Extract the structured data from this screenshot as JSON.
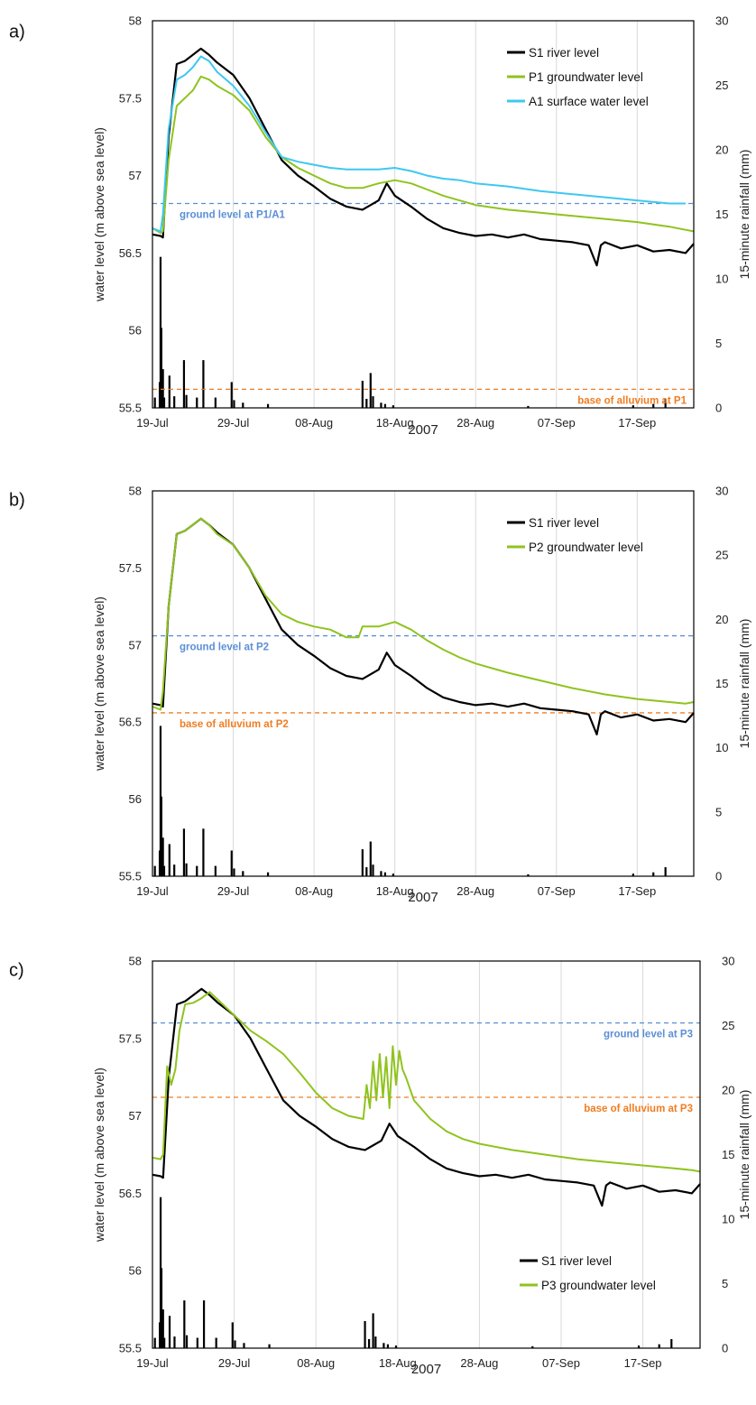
{
  "chart_data": [
    {
      "type": "line",
      "panel_label": "a)",
      "x_ticks": [
        "19-Jul",
        "29-Jul",
        "08-Aug",
        "18-Aug",
        "28-Aug",
        "07-Sep",
        "17-Sep"
      ],
      "x_tick_days": [
        0,
        10,
        20,
        30,
        40,
        50,
        60
      ],
      "xlim_days_from_19_Jul": [
        0,
        67
      ],
      "xlabel": "2007",
      "ylabel": "water level (m above sea level)",
      "ylim": [
        55.5,
        58
      ],
      "y_ticks": [
        "55.5",
        "56",
        "56.5",
        "57",
        "57.5",
        "58"
      ],
      "y2label": "15-minute rainfall (mm)",
      "y2lim": [
        0,
        30
      ],
      "y2_ticks": [
        "0",
        "5",
        "10",
        "15",
        "20",
        "25",
        "30"
      ],
      "grid": "vertical",
      "legend_position": "top-right",
      "series": [
        {
          "name": "S1 river level",
          "color": "#000000",
          "x": [
            0,
            1,
            1.3,
            2,
            3,
            4,
            5,
            6,
            7,
            8,
            10,
            12,
            14,
            16,
            18,
            20,
            22,
            24,
            26,
            28,
            29,
            30,
            32,
            34,
            36,
            38,
            40,
            42,
            44,
            46,
            48,
            50,
            52,
            54,
            55,
            55.5,
            56,
            58,
            60,
            62,
            64,
            66,
            67
          ],
          "y": [
            56.62,
            56.61,
            56.6,
            57.25,
            57.72,
            57.74,
            57.78,
            57.82,
            57.78,
            57.73,
            57.65,
            57.5,
            57.3,
            57.1,
            57.0,
            56.93,
            56.85,
            56.8,
            56.78,
            56.84,
            56.95,
            56.87,
            56.8,
            56.72,
            56.66,
            56.63,
            56.61,
            56.62,
            56.6,
            56.62,
            56.59,
            56.58,
            56.57,
            56.55,
            56.42,
            56.55,
            56.57,
            56.53,
            56.55,
            56.51,
            56.52,
            56.5,
            56.56
          ]
        },
        {
          "name": "P1 groundwater level",
          "color": "#8fc31f",
          "x": [
            0,
            1,
            1.3,
            2,
            3,
            4,
            5,
            6,
            7,
            8,
            10,
            12,
            14,
            16,
            18,
            20,
            22,
            24,
            26,
            28,
            30,
            32,
            34,
            36,
            38,
            40,
            44,
            48,
            52,
            56,
            60,
            64,
            66,
            67
          ],
          "y": [
            56.66,
            56.63,
            56.64,
            57.1,
            57.45,
            57.5,
            57.55,
            57.64,
            57.62,
            57.58,
            57.52,
            57.42,
            57.25,
            57.12,
            57.05,
            57.0,
            56.95,
            56.92,
            56.92,
            56.95,
            56.97,
            56.95,
            56.91,
            56.87,
            56.84,
            56.81,
            56.78,
            56.76,
            56.74,
            56.72,
            56.7,
            56.67,
            56.65,
            56.64
          ]
        },
        {
          "name": "A1 surface water level",
          "color": "#3ec8f0",
          "x": [
            0,
            1,
            1.3,
            2,
            3,
            4,
            5,
            6,
            7,
            8,
            10,
            12,
            14,
            16,
            18,
            20,
            22,
            24,
            26,
            28,
            30,
            32,
            34,
            36,
            38,
            40,
            44,
            48,
            52,
            56,
            60,
            64,
            66
          ],
          "y": [
            56.66,
            56.64,
            56.75,
            57.3,
            57.62,
            57.65,
            57.7,
            57.77,
            57.74,
            57.67,
            57.58,
            57.45,
            57.28,
            57.12,
            57.09,
            57.07,
            57.05,
            57.04,
            57.04,
            57.04,
            57.05,
            57.03,
            57.0,
            56.98,
            56.97,
            56.95,
            56.93,
            56.9,
            56.88,
            56.86,
            56.84,
            56.82,
            56.82
          ]
        }
      ],
      "rainfall_series": {
        "color": "#000000",
        "x": [
          0.3,
          0.9,
          1.0,
          1.1,
          1.3,
          1.45,
          2.1,
          2.7,
          3.9,
          4.2,
          5.5,
          6.3,
          7.8,
          9.8,
          10.1,
          11.2,
          14.3,
          26.0,
          26.5,
          27.0,
          27.3,
          28.3,
          28.8,
          29.8,
          46.5,
          59.5,
          62.0,
          63.5
        ],
        "values": [
          0.8,
          2.0,
          11.7,
          6.2,
          3.0,
          0.8,
          2.5,
          0.9,
          3.7,
          1.0,
          0.8,
          3.7,
          0.8,
          2.0,
          0.6,
          0.4,
          0.3,
          2.1,
          0.7,
          2.7,
          0.9,
          0.4,
          0.3,
          0.2,
          0.15,
          0.2,
          0.3,
          0.7
        ]
      },
      "reference_lines": [
        {
          "label": "ground level at P1/A1",
          "value": 56.82,
          "color": "#5b8fd6",
          "label_side": "left"
        },
        {
          "label": "base of alluvium at P1",
          "value": 55.62,
          "color": "#ef7d22",
          "label_side": "right"
        }
      ]
    },
    {
      "type": "line",
      "panel_label": "b)",
      "x_ticks": [
        "19-Jul",
        "29-Jul",
        "08-Aug",
        "18-Aug",
        "28-Aug",
        "07-Sep",
        "17-Sep"
      ],
      "x_tick_days": [
        0,
        10,
        20,
        30,
        40,
        50,
        60
      ],
      "xlim_days_from_19_Jul": [
        0,
        67
      ],
      "xlabel": "2007",
      "ylabel": "water level (m above sea level)",
      "ylim": [
        55.5,
        58
      ],
      "y_ticks": [
        "55.5",
        "56",
        "56.5",
        "57",
        "57.5",
        "58"
      ],
      "y2label": "15-minute rainfall (mm)",
      "y2lim": [
        0,
        30
      ],
      "y2_ticks": [
        "0",
        "5",
        "10",
        "15",
        "20",
        "25",
        "30"
      ],
      "grid": "vertical",
      "legend_position": "top-right",
      "series": [
        {
          "name": "S1 river level",
          "color": "#000000",
          "x": [
            0,
            1,
            1.3,
            2,
            3,
            4,
            5,
            6,
            7,
            8,
            10,
            12,
            14,
            16,
            18,
            20,
            22,
            24,
            26,
            28,
            29,
            30,
            32,
            34,
            36,
            38,
            40,
            42,
            44,
            46,
            48,
            50,
            52,
            54,
            55,
            55.5,
            56,
            58,
            60,
            62,
            64,
            66,
            67
          ],
          "y": [
            56.62,
            56.61,
            56.6,
            57.25,
            57.72,
            57.74,
            57.78,
            57.82,
            57.78,
            57.73,
            57.65,
            57.5,
            57.3,
            57.1,
            57.0,
            56.93,
            56.85,
            56.8,
            56.78,
            56.84,
            56.95,
            56.87,
            56.8,
            56.72,
            56.66,
            56.63,
            56.61,
            56.62,
            56.6,
            56.62,
            56.59,
            56.58,
            56.57,
            56.55,
            56.42,
            56.55,
            56.57,
            56.53,
            56.55,
            56.51,
            56.52,
            56.5,
            56.56
          ]
        },
        {
          "name": "P2 groundwater level",
          "color": "#8fc31f",
          "x": [
            0,
            1,
            1.3,
            2,
            3,
            4,
            5,
            6,
            7,
            8,
            10,
            12,
            14,
            16,
            18,
            20,
            22,
            24,
            25.5,
            26,
            28,
            30,
            32,
            34,
            36,
            38,
            40,
            44,
            48,
            52,
            56,
            60,
            64,
            66,
            67
          ],
          "y": [
            56.6,
            56.58,
            56.7,
            57.25,
            57.72,
            57.74,
            57.78,
            57.82,
            57.78,
            57.72,
            57.65,
            57.5,
            57.32,
            57.2,
            57.15,
            57.12,
            57.1,
            57.05,
            57.05,
            57.12,
            57.12,
            57.15,
            57.1,
            57.03,
            56.97,
            56.92,
            56.88,
            56.82,
            56.77,
            56.72,
            56.68,
            56.65,
            56.63,
            56.62,
            56.63
          ]
        }
      ],
      "rainfall_series": {
        "color": "#000000",
        "x": [
          0.3,
          0.9,
          1.0,
          1.1,
          1.3,
          1.45,
          2.1,
          2.7,
          3.9,
          4.2,
          5.5,
          6.3,
          7.8,
          9.8,
          10.1,
          11.2,
          14.3,
          26.0,
          26.5,
          27.0,
          27.3,
          28.3,
          28.8,
          29.8,
          46.5,
          59.5,
          62.0,
          63.5
        ],
        "values": [
          0.8,
          2.0,
          11.7,
          6.2,
          3.0,
          0.8,
          2.5,
          0.9,
          3.7,
          1.0,
          0.8,
          3.7,
          0.8,
          2.0,
          0.6,
          0.4,
          0.3,
          2.1,
          0.7,
          2.7,
          0.9,
          0.4,
          0.3,
          0.2,
          0.15,
          0.2,
          0.3,
          0.7
        ]
      },
      "reference_lines": [
        {
          "label": "ground level at P2",
          "value": 57.06,
          "color": "#5b8fd6",
          "label_side": "left"
        },
        {
          "label": "base of alluvium at P2",
          "value": 56.56,
          "color": "#ef7d22",
          "label_side": "left"
        }
      ]
    },
    {
      "type": "line",
      "panel_label": "c)",
      "x_ticks": [
        "19-Jul",
        "29-Jul",
        "08-Aug",
        "18-Aug",
        "28-Aug",
        "07-Sep",
        "17-Sep"
      ],
      "x_tick_days": [
        0,
        10,
        20,
        30,
        40,
        50,
        60
      ],
      "xlim_days_from_19_Jul": [
        0,
        67
      ],
      "xlabel": "2007",
      "ylabel": "water level (m above sea level)",
      "ylim": [
        55.5,
        58
      ],
      "y_ticks": [
        "55.5",
        "56",
        "56.5",
        "57",
        "57.5",
        "58"
      ],
      "y2label": "15-minute rainfall (mm)",
      "y2lim": [
        0,
        30
      ],
      "y2_ticks": [
        "0",
        "5",
        "10",
        "15",
        "20",
        "25",
        "30"
      ],
      "grid": "vertical",
      "legend_position": "bottom-right",
      "series": [
        {
          "name": "S1 river level",
          "color": "#000000",
          "x": [
            0,
            1,
            1.3,
            2,
            3,
            4,
            5,
            6,
            7,
            8,
            10,
            12,
            14,
            16,
            18,
            20,
            22,
            24,
            26,
            28,
            29,
            30,
            32,
            34,
            36,
            38,
            40,
            42,
            44,
            46,
            48,
            50,
            52,
            54,
            55,
            55.5,
            56,
            58,
            60,
            62,
            64,
            66,
            67
          ],
          "y": [
            56.62,
            56.61,
            56.6,
            57.25,
            57.72,
            57.74,
            57.78,
            57.82,
            57.78,
            57.73,
            57.65,
            57.5,
            57.3,
            57.1,
            57.0,
            56.93,
            56.85,
            56.8,
            56.78,
            56.84,
            56.95,
            56.87,
            56.8,
            56.72,
            56.66,
            56.63,
            56.61,
            56.62,
            56.6,
            56.62,
            56.59,
            56.58,
            56.57,
            56.55,
            56.42,
            56.55,
            56.57,
            56.53,
            56.55,
            56.51,
            56.52,
            56.5,
            56.56
          ]
        },
        {
          "name": "P3 groundwater level",
          "color": "#8fc31f",
          "x": [
            0,
            1,
            1.3,
            1.8,
            2.3,
            2.8,
            3.3,
            4,
            5,
            6,
            7,
            8,
            10,
            12,
            14,
            16,
            18,
            20,
            22,
            24,
            25.8,
            26.2,
            26.6,
            27,
            27.4,
            27.8,
            28.2,
            28.6,
            29,
            29.4,
            29.8,
            30.2,
            30.6,
            31,
            32,
            34,
            36,
            38,
            40,
            44,
            48,
            52,
            56,
            60,
            64,
            66,
            67
          ],
          "y": [
            56.73,
            56.72,
            56.75,
            57.32,
            57.2,
            57.3,
            57.55,
            57.72,
            57.73,
            57.76,
            57.8,
            57.75,
            57.65,
            57.55,
            57.48,
            57.4,
            57.28,
            57.15,
            57.05,
            57.0,
            56.98,
            57.2,
            57.05,
            57.35,
            57.1,
            57.4,
            57.12,
            57.38,
            57.05,
            57.45,
            57.2,
            57.42,
            57.3,
            57.25,
            57.1,
            56.98,
            56.9,
            56.85,
            56.82,
            56.78,
            56.75,
            56.72,
            56.7,
            56.68,
            56.66,
            56.65,
            56.64
          ]
        }
      ],
      "rainfall_series": {
        "color": "#000000",
        "x": [
          0.3,
          0.9,
          1.0,
          1.1,
          1.3,
          1.45,
          2.1,
          2.7,
          3.9,
          4.2,
          5.5,
          6.3,
          7.8,
          9.8,
          10.1,
          11.2,
          14.3,
          26.0,
          26.5,
          27.0,
          27.3,
          28.3,
          28.8,
          29.8,
          46.5,
          59.5,
          62.0,
          63.5
        ],
        "values": [
          0.8,
          2.0,
          11.7,
          6.2,
          3.0,
          0.8,
          2.5,
          0.9,
          3.7,
          1.0,
          0.8,
          3.7,
          0.8,
          2.0,
          0.6,
          0.4,
          0.3,
          2.1,
          0.7,
          2.7,
          0.9,
          0.4,
          0.3,
          0.2,
          0.15,
          0.2,
          0.3,
          0.7
        ]
      },
      "reference_lines": [
        {
          "label": "ground level at P3",
          "value": 57.6,
          "color": "#5b8fd6",
          "label_side": "right"
        },
        {
          "label": "base of alluvium at P3",
          "value": 57.12,
          "color": "#ef7d22",
          "label_side": "right"
        }
      ]
    }
  ]
}
